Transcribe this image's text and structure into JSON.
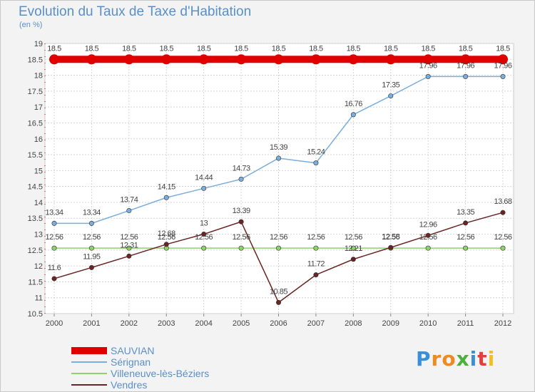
{
  "title": "Evolution du Taux de Taxe d'Habitation",
  "subtitle": "(en %)",
  "logo": {
    "text": "Proxiti",
    "letters": [
      {
        "ch": "P",
        "color": "#3a8fd9"
      },
      {
        "ch": "r",
        "color": "#f08a1c"
      },
      {
        "ch": "o",
        "color": "#f08a1c"
      },
      {
        "ch": "x",
        "color": "#4caf3e"
      },
      {
        "ch": "i",
        "color": "#3a8fd9"
      },
      {
        "ch": "t",
        "color": "#e04040"
      },
      {
        "ch": "i",
        "color": "#f0c020"
      }
    ]
  },
  "chart_data": {
    "type": "line",
    "title": "Evolution du Taux de Taxe d'Habitation",
    "ylabel": "(en %)",
    "xlabel": "",
    "x": [
      "2000",
      "2001",
      "2002",
      "2003",
      "2004",
      "2005",
      "2006",
      "2007",
      "2008",
      "2009",
      "2010",
      "2011",
      "2012"
    ],
    "ylim": [
      10.5,
      19
    ],
    "yticks": [
      "10.5",
      "11",
      "11.5",
      "12",
      "12.5",
      "13",
      "13.5",
      "14",
      "14.5",
      "15",
      "15.5",
      "16",
      "16.5",
      "17",
      "17.5",
      "18",
      "18.5",
      "19"
    ],
    "grid": true,
    "legend_position": "bottom-left",
    "series": [
      {
        "name": "SAUVIAN",
        "color": "#e00000",
        "values": [
          18.5,
          18.5,
          18.5,
          18.5,
          18.5,
          18.5,
          18.5,
          18.5,
          18.5,
          18.5,
          18.5,
          18.5,
          18.5
        ],
        "labels": [
          "18.5",
          "18.5",
          "18.5",
          "18.5",
          "18.5",
          "18.5",
          "18.5",
          "18.5",
          "18.5",
          "18.5",
          "18.5",
          "18.5",
          "18.5"
        ]
      },
      {
        "name": "Sérignan",
        "color": "#7aaedc",
        "values": [
          13.34,
          13.34,
          13.74,
          14.15,
          14.44,
          14.73,
          15.39,
          15.24,
          16.76,
          17.35,
          17.96,
          17.96,
          17.96
        ],
        "labels": [
          "13.34",
          "13.34",
          "13.74",
          "14.15",
          "14.44",
          "14.73",
          "15.39",
          "15.24",
          "16.76",
          "17.35",
          "17.96",
          "17.96",
          "17.96"
        ]
      },
      {
        "name": "Villeneuve-lès-Béziers",
        "color": "#8fd16a",
        "values": [
          12.56,
          12.56,
          12.56,
          12.56,
          12.56,
          12.56,
          12.56,
          12.56,
          12.56,
          12.56,
          12.56,
          12.56,
          12.56
        ],
        "labels": [
          "12.56",
          "12.56",
          "12.56",
          "12.56",
          "12.56",
          "12.56",
          "12.56",
          "12.56",
          "12.56",
          "12.56",
          "12.56",
          "12.56",
          "12.56"
        ]
      },
      {
        "name": "Vendres",
        "color": "#6b2424",
        "values": [
          11.6,
          11.95,
          12.31,
          12.68,
          13,
          13.39,
          10.85,
          11.72,
          12.21,
          12.58,
          12.96,
          13.35,
          13.68
        ],
        "labels": [
          "11.6",
          "11.95",
          "12.31",
          "12.68",
          "13",
          "13.39",
          "10.85",
          "11.72",
          "12.21",
          "12.58",
          "12.96",
          "13.35",
          "13.68"
        ]
      }
    ]
  }
}
